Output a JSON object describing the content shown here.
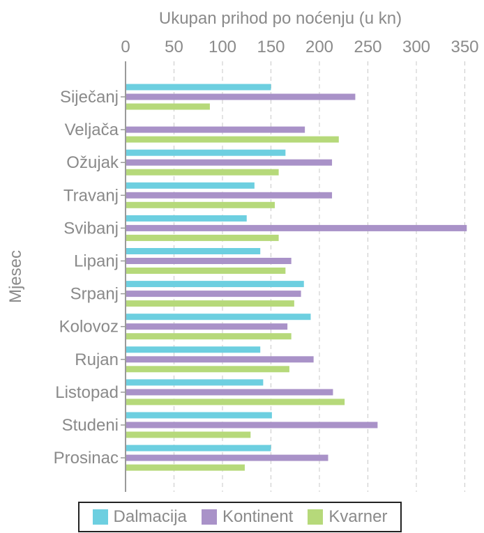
{
  "chart_data": {
    "type": "bar",
    "orientation": "horizontal",
    "title": "",
    "xlabel": "Ukupan prihod po noćenju (u kn)",
    "ylabel": "Mjesec",
    "xlim": [
      0,
      360
    ],
    "xticks": [
      0,
      50,
      100,
      150,
      200,
      250,
      300,
      350
    ],
    "grid": true,
    "legend_position": "bottom",
    "categories": [
      "Siječanj",
      "Veljača",
      "Ožujak",
      "Travanj",
      "Svibanj",
      "Lipanj",
      "Srpanj",
      "Kolovoz",
      "Rujan",
      "Listopad",
      "Studeni",
      "Prosinac"
    ],
    "series": [
      {
        "name": "Dalmacija",
        "color": "#6dcfe0",
        "values": [
          150,
          0,
          165,
          133,
          125,
          139,
          184,
          191,
          139,
          142,
          151,
          150
        ]
      },
      {
        "name": "Kontinent",
        "color": "#a992c8",
        "values": [
          237,
          185,
          213,
          213,
          352,
          171,
          181,
          167,
          194,
          214,
          260,
          209
        ]
      },
      {
        "name": "Kvarner",
        "color": "#b6d97a",
        "values": [
          87,
          220,
          158,
          154,
          158,
          165,
          174,
          171,
          169,
          226,
          129,
          123
        ]
      }
    ]
  }
}
